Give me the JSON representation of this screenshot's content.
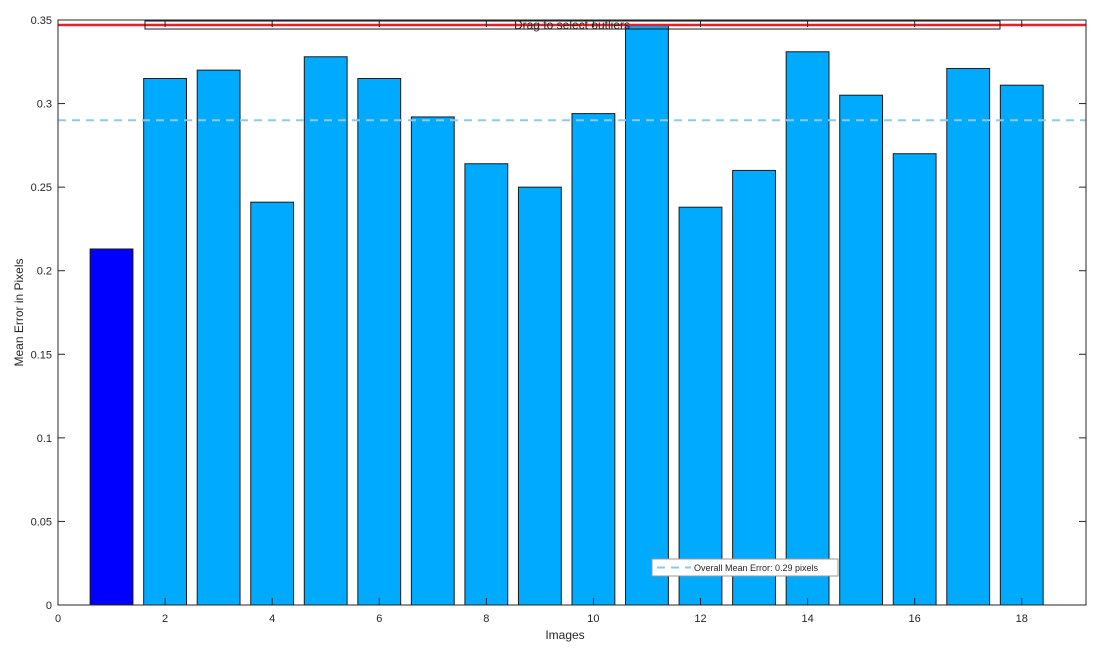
{
  "chart_data": {
    "type": "bar",
    "title": "",
    "xlabel": "Images",
    "ylabel": "Mean Error in Pixels",
    "xlim": [
      0,
      19.2
    ],
    "ylim": [
      0,
      0.35
    ],
    "x": [
      1,
      2,
      3,
      4,
      5,
      6,
      7,
      8,
      9,
      10,
      11,
      12,
      13,
      14,
      15,
      16,
      17,
      18
    ],
    "values": [
      0.213,
      0.315,
      0.32,
      0.241,
      0.328,
      0.315,
      0.292,
      0.264,
      0.25,
      0.294,
      0.347,
      0.238,
      0.26,
      0.331,
      0.305,
      0.27,
      0.321,
      0.311
    ],
    "highlighted_index": 0,
    "xticks": [
      0,
      2,
      4,
      6,
      8,
      10,
      12,
      14,
      16,
      18
    ],
    "yticks": [
      0,
      0.05,
      0.1,
      0.15,
      0.2,
      0.25,
      0.3,
      0.35
    ],
    "xtick_labels": [
      "0",
      "2",
      "4",
      "6",
      "8",
      "10",
      "12",
      "14",
      "16",
      "18"
    ],
    "ytick_labels": [
      "0",
      "0.05",
      "0.1",
      "0.15",
      "0.2",
      "0.25",
      "0.3",
      "0.35"
    ],
    "mean_error": 0.29,
    "outlier_threshold": 0.347,
    "legend": {
      "entries": [
        "Overall Mean Error: 0.29 pixels"
      ],
      "placement": "bottom-right"
    },
    "drag_handle_label": "Drag to select outliers",
    "grid": false,
    "colors": {
      "bar": "#00aaff",
      "bar_selected": "#0000ff",
      "bar_edge": "#1a1a1a",
      "mean_line": "#8fc8e8",
      "threshold_line": "#e8202a",
      "axis": "#262626"
    }
  }
}
